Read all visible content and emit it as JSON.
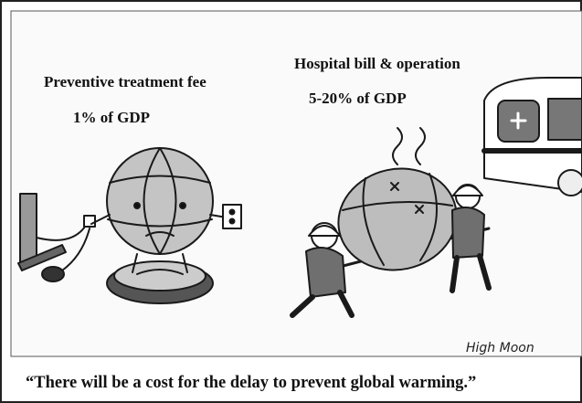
{
  "left": {
    "label": "Preventive treatment fee",
    "cost": "1% of GDP"
  },
  "right": {
    "label": "Hospital bill & operation",
    "cost": "5-20% of GDP"
  },
  "signature": "High Moon",
  "caption": "“There will be a cost for the delay to prevent global warming.”"
}
